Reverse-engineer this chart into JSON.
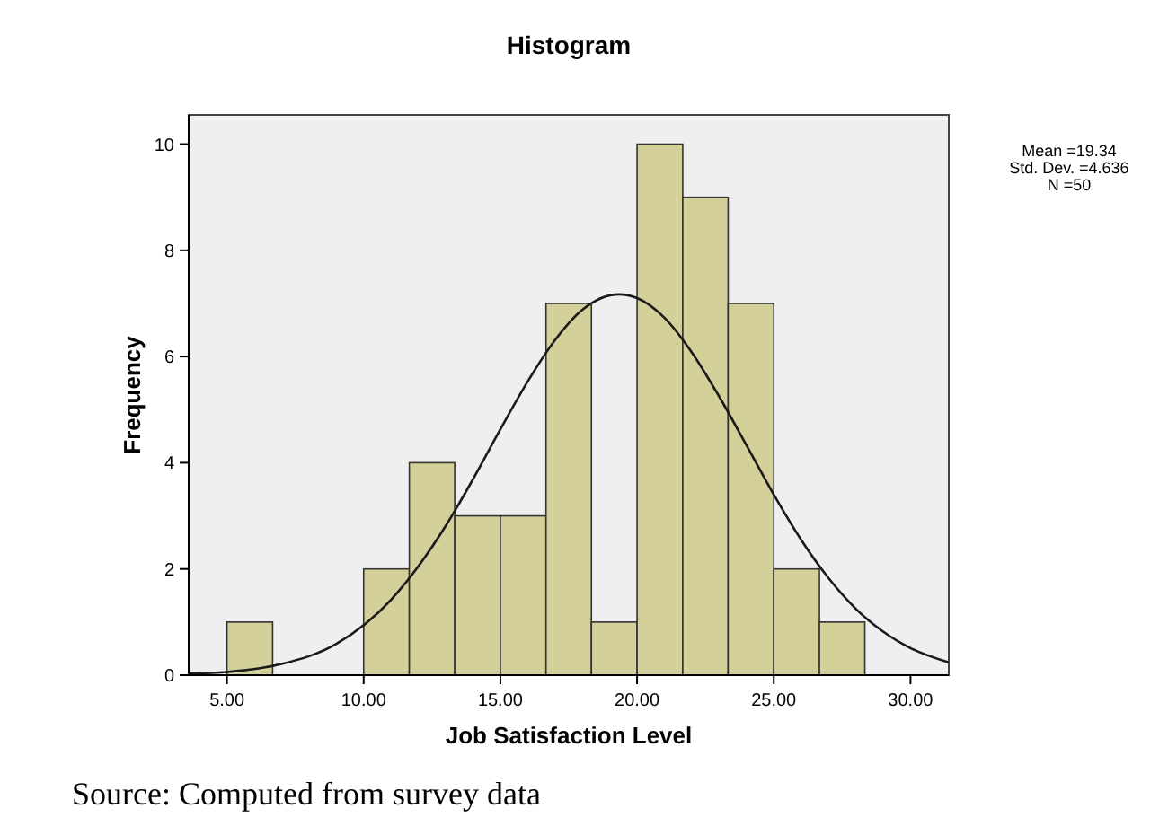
{
  "chart_data": {
    "type": "histogram",
    "title": "Histogram",
    "xlabel": "Job Satisfaction Level",
    "ylabel": "Frequency",
    "bins": [
      5,
      6.67,
      8.33,
      10,
      11.67,
      13.33,
      15,
      16.67,
      18.33,
      20,
      21.67,
      23.33,
      25,
      26.67,
      28.33
    ],
    "values": [
      1,
      0,
      0,
      2,
      4,
      3,
      3,
      7,
      1,
      10,
      9,
      7,
      2,
      1
    ],
    "color": "#d4d09a",
    "series": [
      {
        "type": "line",
        "color": "#1a1a1a",
        "x": [
          3.6,
          5,
          7,
          9,
          11,
          12,
          13,
          14,
          15,
          16,
          17,
          18,
          19.34,
          20,
          21,
          22,
          23,
          24,
          25,
          26,
          27,
          28,
          29,
          30,
          31.4
        ],
        "values": [
          0.03,
          0.06,
          0.21,
          0.59,
          1.42,
          2.05,
          2.81,
          3.69,
          4.63,
          5.53,
          6.31,
          6.88,
          7.17,
          7.1,
          6.73,
          6.08,
          5.25,
          4.33,
          3.4,
          2.55,
          1.83,
          1.25,
          0.82,
          0.51,
          0.24
        ]
      }
    ],
    "xlim": [
      3.6,
      31.4
    ],
    "ylim": [
      0,
      10.55
    ],
    "xticks": [
      {
        "value": 5,
        "label": "5.00"
      },
      {
        "value": 10,
        "label": "10.00"
      },
      {
        "value": 15,
        "label": "15.00"
      },
      {
        "value": 20,
        "label": "20.00"
      },
      {
        "value": 25,
        "label": "25.00"
      },
      {
        "value": 30,
        "label": "30.00"
      }
    ],
    "yticks": [
      0,
      2,
      4,
      6,
      8,
      10
    ],
    "annotations": [
      "Mean =19.34",
      "Std. Dev. =4.636",
      "N =50",
      "Source: Computed from survey data"
    ]
  }
}
